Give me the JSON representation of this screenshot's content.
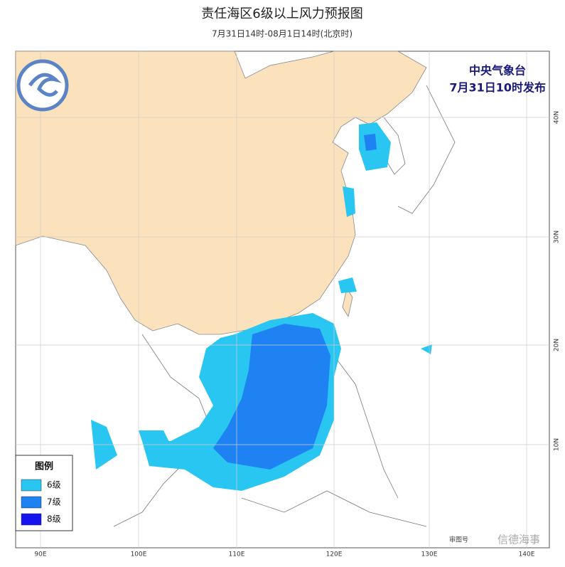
{
  "header": {
    "title": "责任海区6级以上风力预报图",
    "subtitle": "7月31日14时-08月1日14时(北京时)"
  },
  "issuer": {
    "agency": "中央气象台",
    "issue_time": "7月31日10时发布"
  },
  "legend": {
    "title": "图例",
    "items": [
      {
        "label": "6级",
        "color": "#29c6f2"
      },
      {
        "label": "7级",
        "color": "#1f82f2"
      },
      {
        "label": "8级",
        "color": "#1414ee"
      }
    ]
  },
  "map": {
    "longitude_labels": [
      "90E",
      "100E",
      "110E",
      "120E",
      "130E",
      "140E"
    ],
    "latitude_labels": [
      "40N",
      "30N",
      "20N",
      "10N"
    ]
  },
  "footer": {
    "review_number": "审图号",
    "watermark": "信德海事"
  }
}
